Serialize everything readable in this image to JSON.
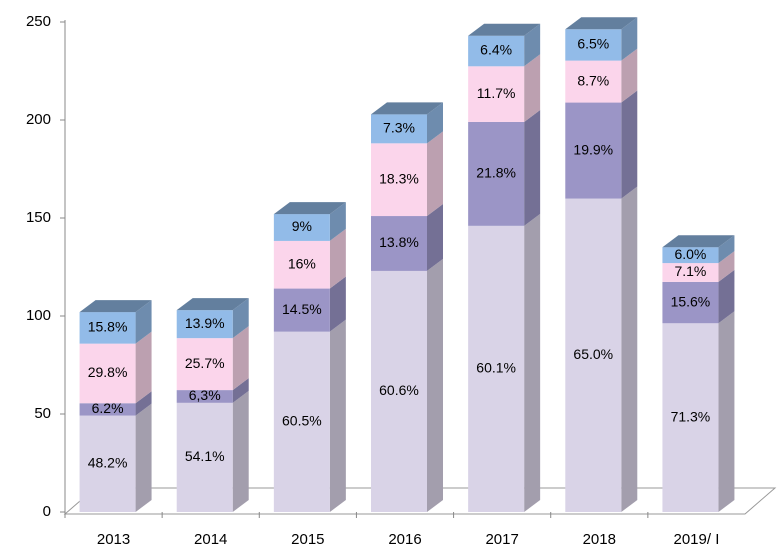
{
  "chart_data": {
    "type": "bar3d_stacked",
    "categories": [
      "2013",
      "2014",
      "2015",
      "2016",
      "2017",
      "2018",
      "2019/ I"
    ],
    "ylim": [
      0,
      250
    ],
    "yticks": [
      0,
      50,
      100,
      150,
      200,
      250
    ],
    "series": [
      {
        "color": "#d9d3e7",
        "values": [
          49.2,
          55.7,
          92.0,
          123.0,
          146.0,
          159.9,
          96.3
        ],
        "segment_labels": [
          "48.2%",
          "54.1%",
          "60.5%",
          "60.6%",
          "60.1%",
          "65.0%",
          "71.3%"
        ]
      },
      {
        "color": "#9b95c6",
        "values": [
          6.3,
          6.5,
          22.0,
          28.0,
          53.0,
          49.0,
          21.1
        ],
        "segment_labels": [
          "6.2%",
          "6,3%",
          "14.5%",
          "13.8%",
          "21.8%",
          "19.9%",
          "15.6%"
        ]
      },
      {
        "color": "#fbd5eb",
        "values": [
          30.4,
          26.5,
          24.3,
          37.1,
          28.4,
          21.4,
          9.6
        ],
        "segment_labels": [
          "29.8%",
          "25.7%",
          "16%",
          "18.3%",
          "11.7%",
          "8.7%",
          "7.1%"
        ]
      },
      {
        "color": "#92bbe8",
        "values": [
          16.1,
          14.3,
          13.7,
          14.8,
          15.6,
          16.0,
          8.1
        ],
        "segment_labels": [
          "15.8%",
          "13.9%",
          "9%",
          "7.3%",
          "6.4%",
          "6.5%",
          "6.0%"
        ]
      }
    ]
  }
}
